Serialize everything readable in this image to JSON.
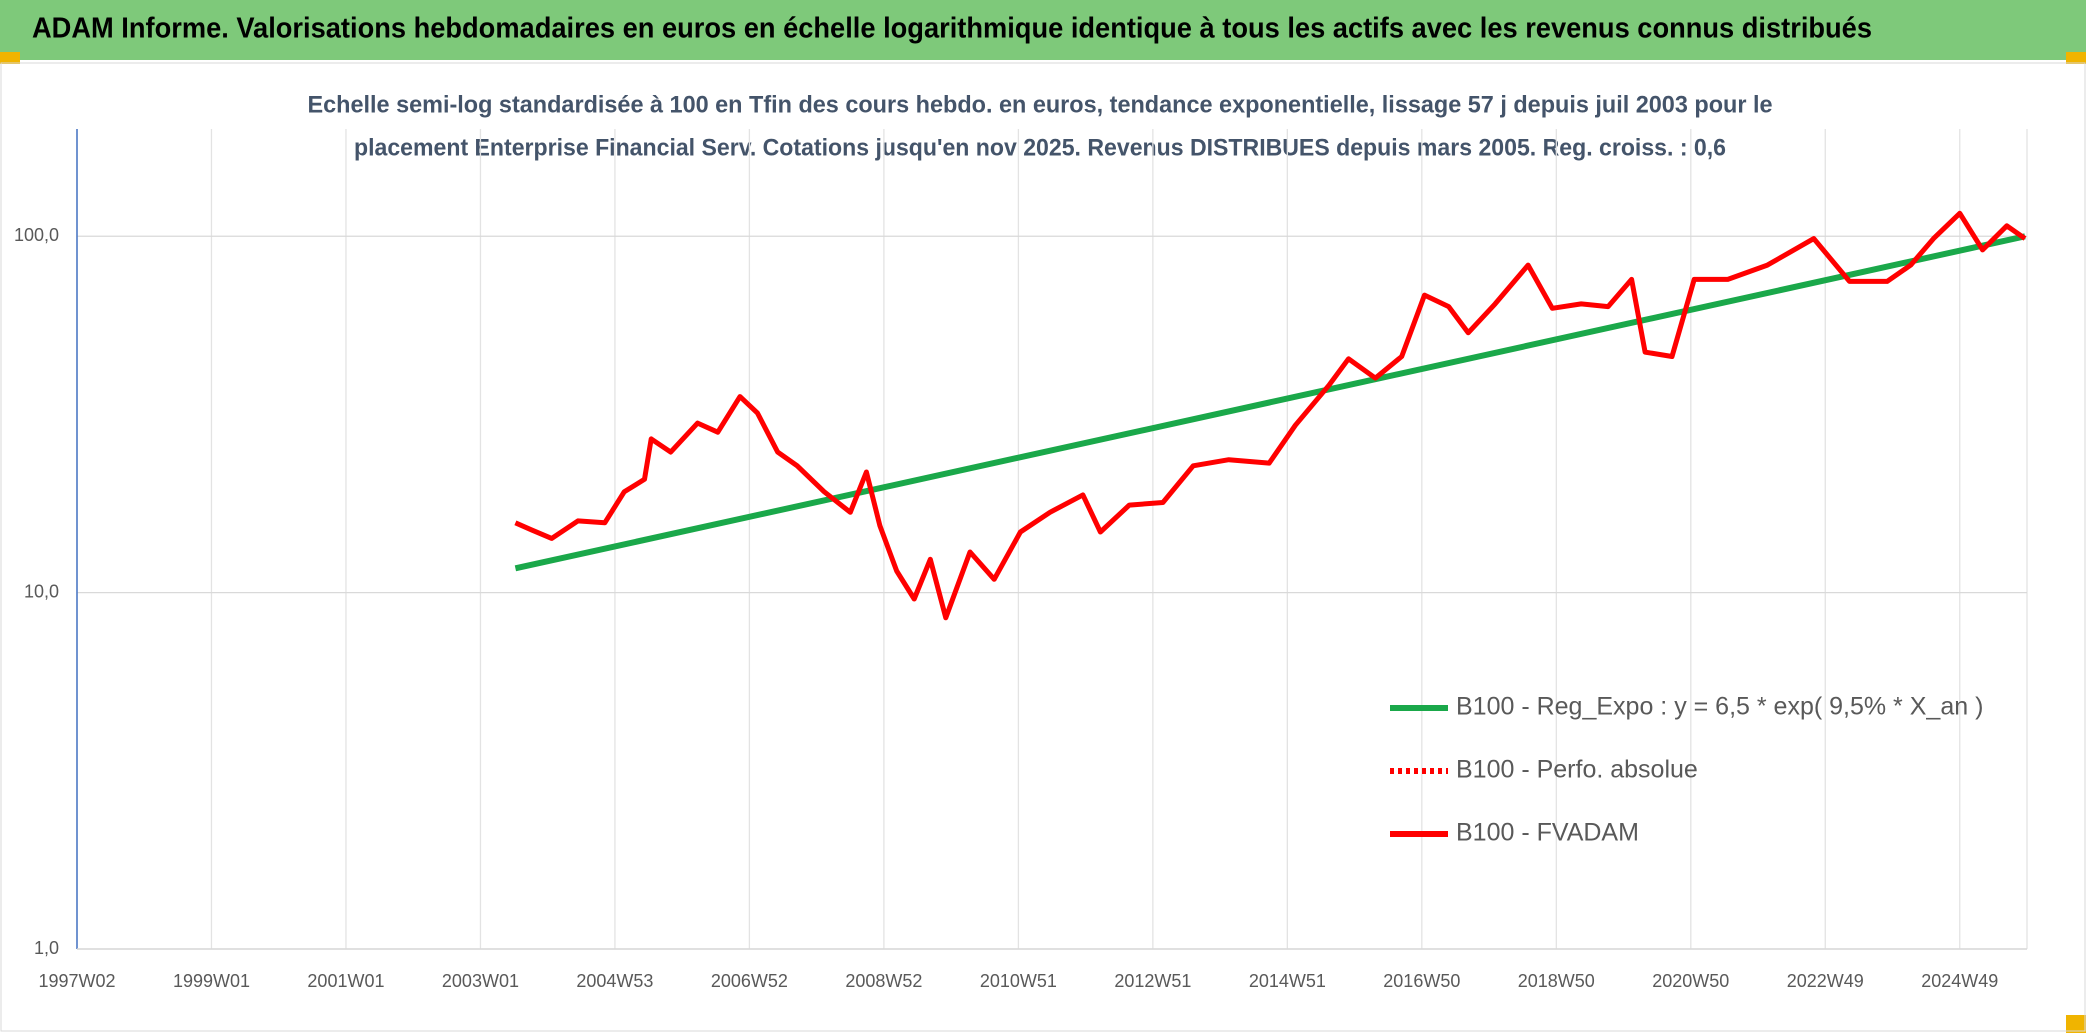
{
  "header": {
    "title": "ADAM Informe. Valorisations hebdomadaires en euros en échelle logarithmique identique à tous les actifs avec les revenus connus distribués"
  },
  "chart_data": {
    "type": "line",
    "title": [
      "Echelle semi-log standardisée à 100 en Tfin des cours hebdo. en euros, tendance exponentielle, lissage 57 j depuis juil 2003 pour le",
      "placement Enterprise Financial Serv. Cotations jusqu'en nov 2025. Revenus DISTRIBUES depuis mars 2005. Reg. croiss. : 0,6"
    ],
    "log_y": true,
    "grid": true,
    "legend": "right",
    "xlim": [
      1997,
      2026
    ],
    "xticks": [
      {
        "value": 1997,
        "label": "1997W02"
      },
      {
        "value": 1999,
        "label": "1999W01"
      },
      {
        "value": 2001,
        "label": "2001W01"
      },
      {
        "value": 2003,
        "label": "2003W01"
      },
      {
        "value": 2005,
        "label": "2004W53"
      },
      {
        "value": 2007,
        "label": "2006W52"
      },
      {
        "value": 2009,
        "label": "2008W52"
      },
      {
        "value": 2011,
        "label": "2010W51"
      },
      {
        "value": 2013,
        "label": "2012W51"
      },
      {
        "value": 2015,
        "label": "2014W51"
      },
      {
        "value": 2017,
        "label": "2016W50"
      },
      {
        "value": 2019,
        "label": "2018W50"
      },
      {
        "value": 2021,
        "label": "2020W50"
      },
      {
        "value": 2023,
        "label": "2022W49"
      },
      {
        "value": 2025,
        "label": "2024W49"
      }
    ],
    "ylim": [
      1,
      200
    ],
    "yticks": [
      {
        "value": 1,
        "label": "1,0"
      },
      {
        "value": 10,
        "label": "10,0"
      },
      {
        "value": 100,
        "label": "100,0"
      }
    ],
    "series": [
      {
        "name": "B100 - Reg_Expo : y = 6,5 * exp( 9,5% *  X_an )",
        "color": "#1aa84a",
        "dash": false,
        "x": [
          2003.52,
          2025.97
        ],
        "values": [
          11.7,
          100
        ]
      },
      {
        "name": "B100 - Perfo. absolue",
        "color": "#ff0000",
        "dash": true,
        "x": [],
        "values": []
      },
      {
        "name": "B100 - FVADAM",
        "color": "#ff0000",
        "dash": false,
        "x": [
          2003.52,
          2003.76,
          2004.06,
          2004.45,
          2004.85,
          2005.14,
          2005.44,
          2005.54,
          2005.83,
          2006.23,
          2006.53,
          2006.86,
          2007.12,
          2007.42,
          2007.71,
          2008.11,
          2008.5,
          2008.74,
          2008.94,
          2009.19,
          2009.45,
          2009.69,
          2009.92,
          2010.28,
          2010.64,
          2011.03,
          2011.47,
          2011.96,
          2012.22,
          2012.65,
          2013.15,
          2013.6,
          2014.13,
          2014.73,
          2015.12,
          2015.62,
          2015.91,
          2016.31,
          2016.7,
          2017.04,
          2017.4,
          2017.69,
          2018.09,
          2018.58,
          2018.94,
          2019.37,
          2019.77,
          2020.12,
          2020.32,
          2020.72,
          2021.05,
          2021.55,
          2022.14,
          2022.83,
          2023.36,
          2023.92,
          2024.27,
          2024.61,
          2025.0,
          2025.34,
          2025.7,
          2025.97
        ],
        "values": [
          15.7,
          15,
          14.2,
          15.9,
          15.7,
          19.2,
          20.8,
          27,
          24.8,
          29.9,
          28.2,
          35.5,
          31.9,
          24.8,
          22.7,
          19.2,
          16.8,
          21.8,
          15.4,
          11.5,
          9.6,
          12.4,
          8.5,
          13,
          10.9,
          14.8,
          16.8,
          18.8,
          14.8,
          17.6,
          17.9,
          22.7,
          23.6,
          23.1,
          29.5,
          38.2,
          45.3,
          40,
          46,
          68.4,
          63.5,
          53.6,
          64.6,
          83,
          62.8,
          64.6,
          63.5,
          75.7,
          47.3,
          46,
          75.7,
          75.7,
          83,
          98.5,
          74.7,
          74.7,
          83,
          98.5,
          116,
          91.6,
          107,
          98.5
        ]
      }
    ]
  }
}
